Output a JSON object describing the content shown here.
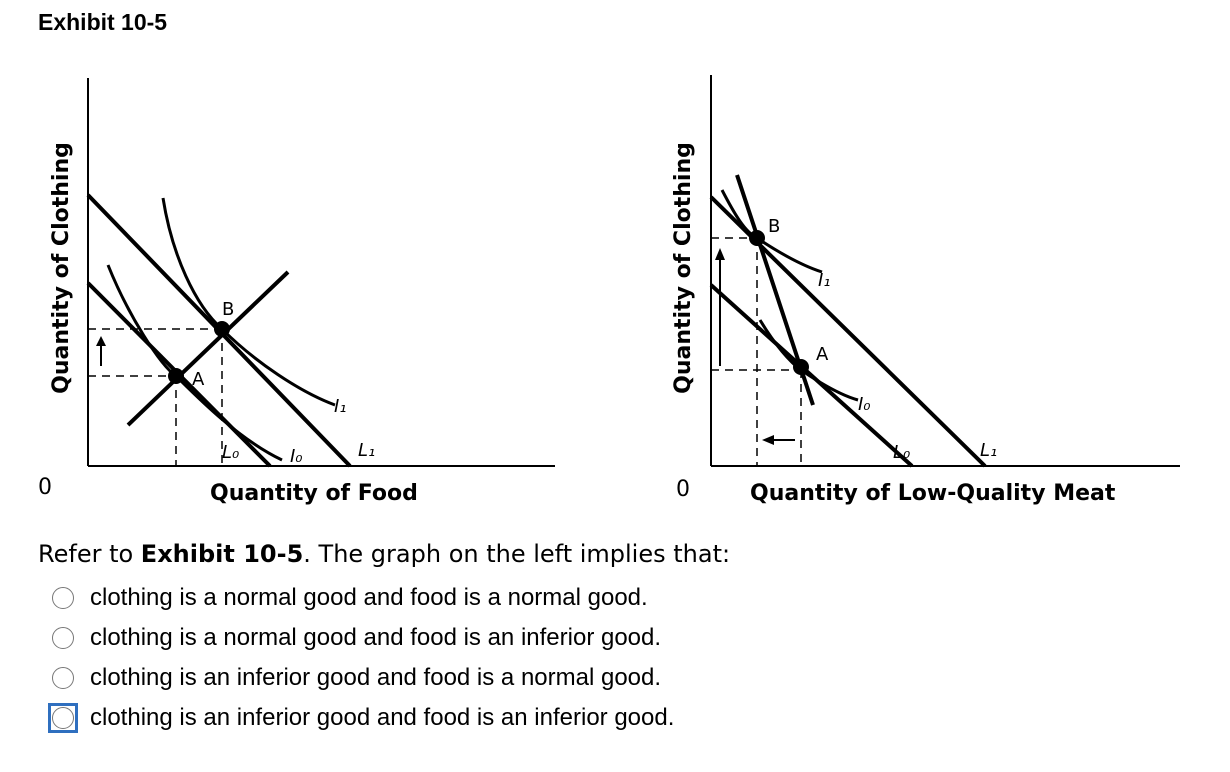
{
  "exhibit_title": "Exhibit 10-5",
  "left_graph": {
    "y_axis_label": "Quantity of Clothing",
    "x_axis_label": "Quantity of Food",
    "origin_label": "0",
    "point_a_label": "A",
    "point_b_label": "B",
    "indifference_curve_0_label": "I₀",
    "indifference_curve_1_label": "I₁",
    "budget_line_0_label": "L₀",
    "budget_line_1_label": "L₁"
  },
  "right_graph": {
    "y_axis_label": "Quantity of Clothing",
    "x_axis_label": "Quantity of Low-Quality Meat",
    "origin_label": "0",
    "point_a_label": "A",
    "point_b_label": "B",
    "indifference_curve_0_label": "I₀",
    "indifference_curve_1_label": "I₁",
    "budget_line_0_label": "L₀",
    "budget_line_1_label": "L₁"
  },
  "question": {
    "prefix": "Refer to ",
    "reference": "Exhibit 10-5",
    "suffix": ". The graph on the left implies that:"
  },
  "options": [
    {
      "label": "clothing is a normal good and food is a normal good."
    },
    {
      "label": "clothing is a normal good and food is an inferior good."
    },
    {
      "label": "clothing is an inferior good and food is a normal good."
    },
    {
      "label": "clothing is an inferior good and food is an inferior good."
    }
  ],
  "colors": {
    "focus_ring": "#2f6fbf",
    "radio_border": "#777777"
  }
}
